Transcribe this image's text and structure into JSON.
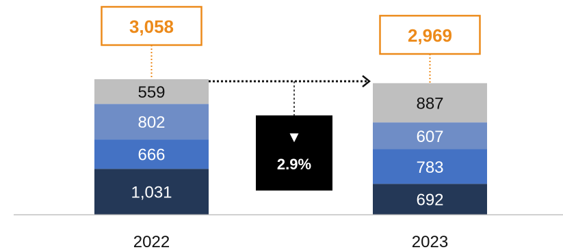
{
  "chart_data": {
    "type": "bar",
    "stacked": true,
    "categories": [
      "2022",
      "2023"
    ],
    "series": [
      {
        "values": [
          1031,
          692
        ],
        "color": "#243857"
      },
      {
        "values": [
          666,
          783
        ],
        "color": "#4472c4"
      },
      {
        "values": [
          802,
          607
        ],
        "color": "#6f8dc6"
      },
      {
        "values": [
          559,
          887
        ],
        "color": "#bfbfbf"
      }
    ],
    "value_labels": [
      [
        "1,031",
        "666",
        "802",
        "559"
      ],
      [
        "692",
        "783",
        "607",
        "887"
      ]
    ],
    "totals": [
      3058,
      2969
    ],
    "total_labels": [
      "3,058",
      "2,969"
    ],
    "change": {
      "direction": "down",
      "symbol": "▼",
      "label": "2.9%"
    },
    "ylim": [
      0,
      3058
    ],
    "grid": false,
    "legend": "none",
    "colors": {
      "total_box": "#ec8a1a",
      "change_box": "#000000",
      "axis": "#bfbfbf",
      "arrow": "#111111"
    }
  }
}
